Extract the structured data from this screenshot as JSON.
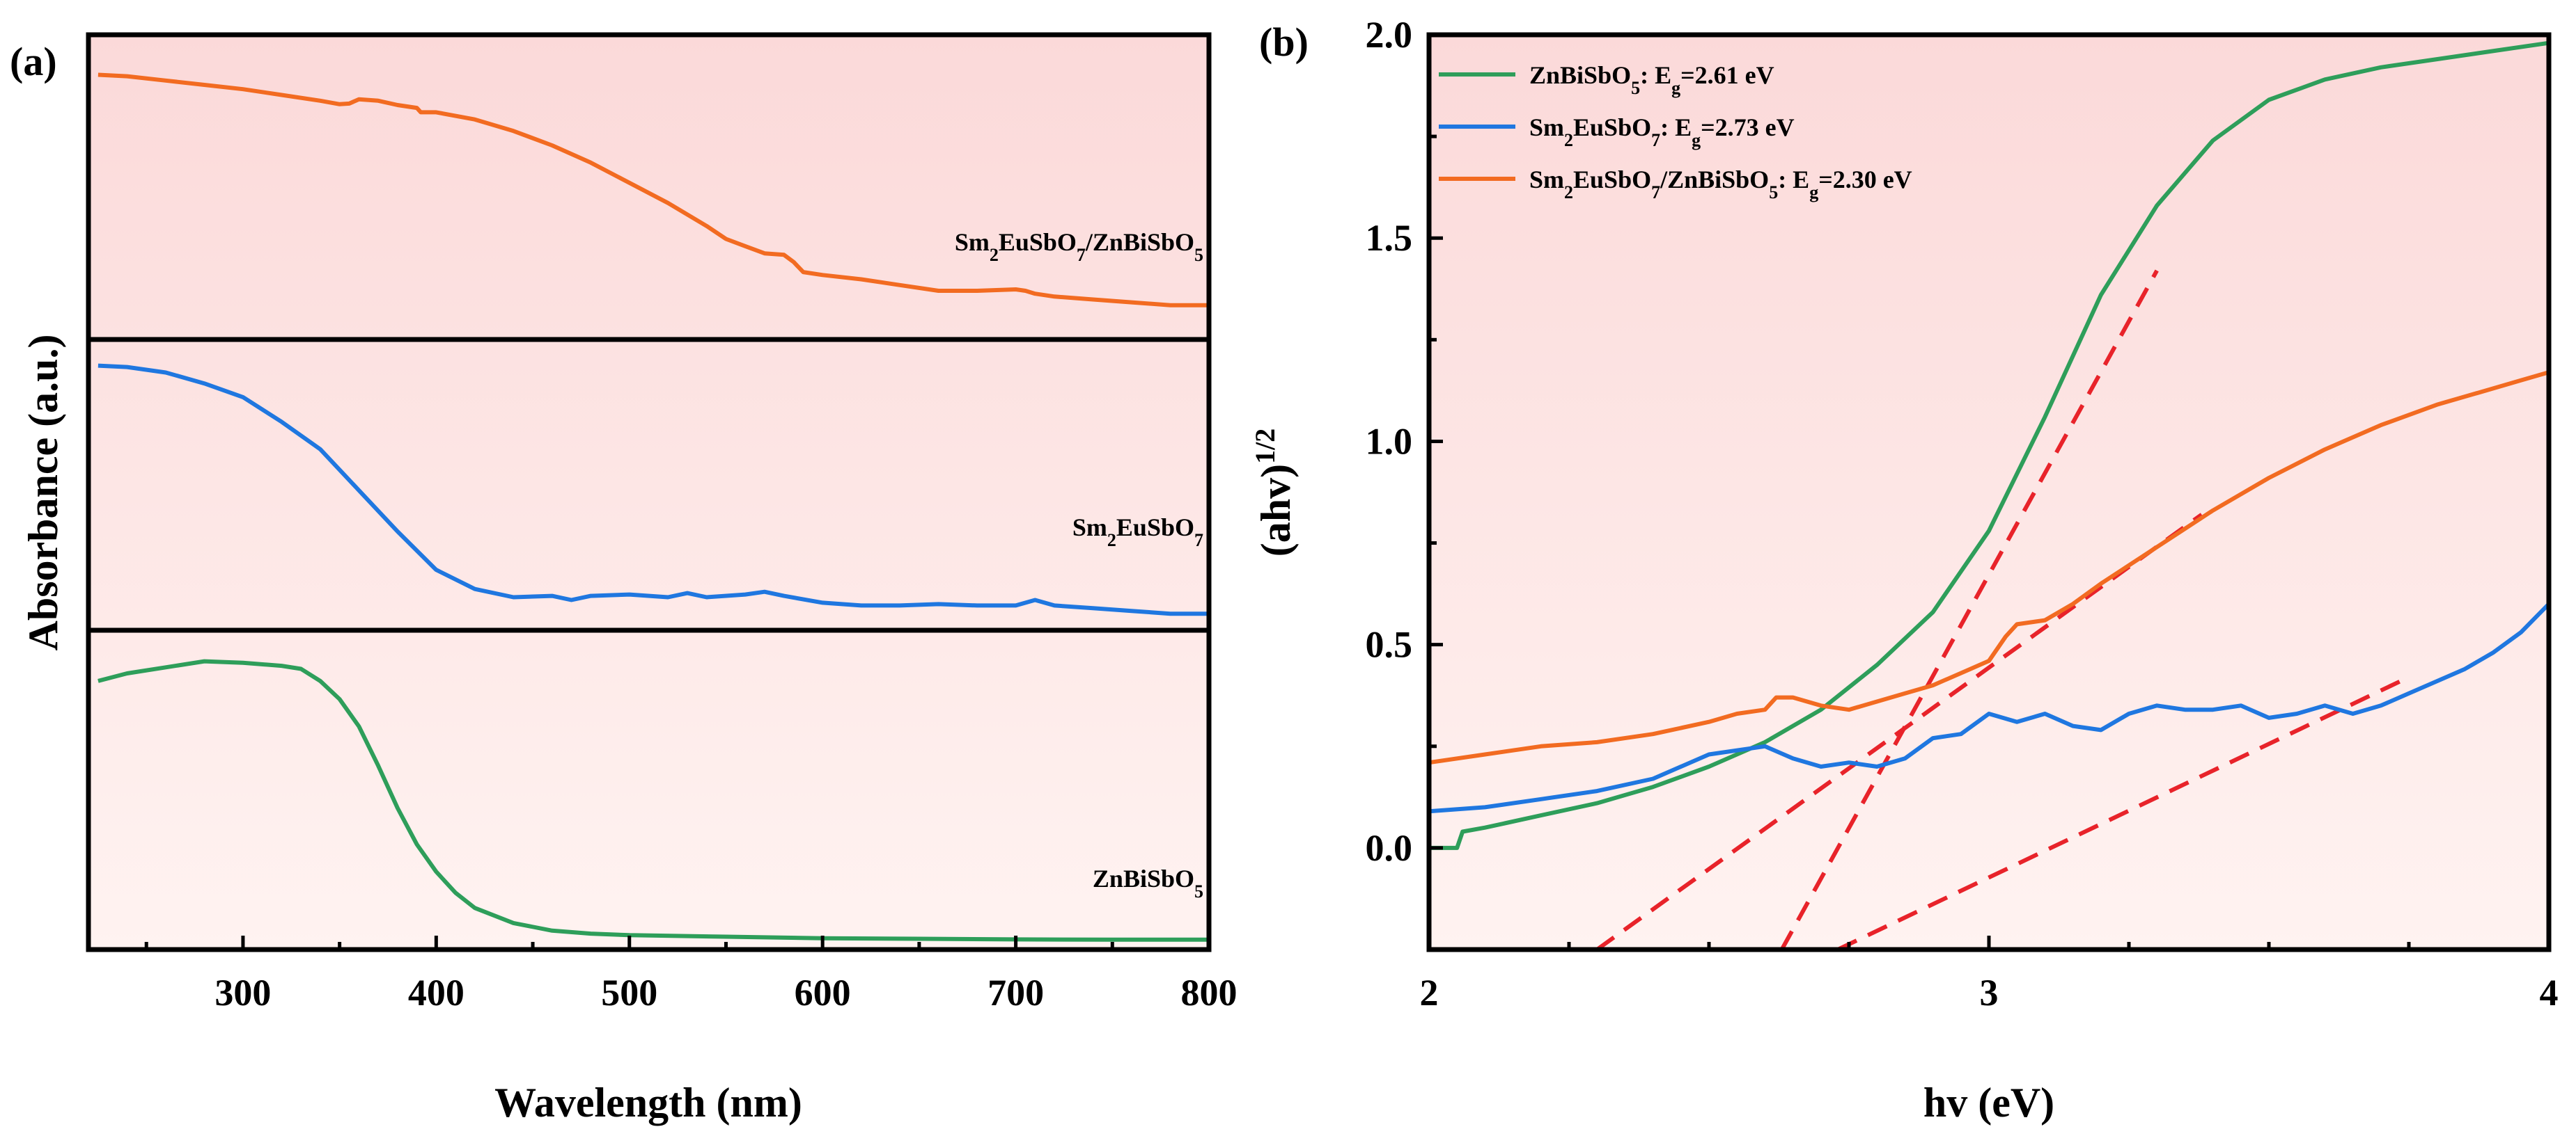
{
  "figure": {
    "panel_a_label": "(a)",
    "panel_b_label": "(b)"
  },
  "chart_data": [
    {
      "type": "line",
      "panel": "(a)",
      "title": "",
      "xlabel": "Wavelength (nm)",
      "ylabel": "Absorbance (a.u.)",
      "xlim": [
        220,
        800
      ],
      "xticks": [
        300,
        400,
        500,
        600,
        700,
        800
      ],
      "xtick_labels": [
        "300",
        "400",
        "500",
        "600",
        "700",
        "800"
      ],
      "yticks": [],
      "layout": "three vertically stacked sub-panels with pink gradient background",
      "series": [
        {
          "name": "Sm2EuSbO7/ZnBiSbO5",
          "label_parts": [
            [
              "Sm",
              ""
            ],
            [
              "2",
              "sub"
            ],
            [
              "EuSbO",
              ""
            ],
            [
              "7",
              "sub"
            ],
            [
              "/ZnBiSbO",
              ""
            ],
            [
              "5",
              "sub"
            ]
          ],
          "color": "#f26b21",
          "stack_index": 0,
          "x": [
            225,
            240,
            260,
            280,
            300,
            320,
            340,
            350,
            355,
            360,
            370,
            380,
            390,
            392,
            400,
            420,
            440,
            460,
            480,
            500,
            520,
            540,
            550,
            560,
            570,
            580,
            585,
            590,
            600,
            620,
            640,
            660,
            680,
            700,
            705,
            710,
            720,
            740,
            760,
            780,
            800
          ],
          "values": [
            0.89,
            0.885,
            0.87,
            0.855,
            0.84,
            0.82,
            0.8,
            0.788,
            0.79,
            0.805,
            0.8,
            0.785,
            0.775,
            0.76,
            0.76,
            0.735,
            0.695,
            0.645,
            0.585,
            0.515,
            0.445,
            0.365,
            0.32,
            0.295,
            0.27,
            0.265,
            0.24,
            0.205,
            0.195,
            0.18,
            0.16,
            0.14,
            0.14,
            0.145,
            0.14,
            0.13,
            0.12,
            0.11,
            0.1,
            0.09,
            0.09
          ]
        },
        {
          "name": "Sm2EuSbO7",
          "label_parts": [
            [
              "Sm",
              ""
            ],
            [
              "2",
              "sub"
            ],
            [
              "EuSbO",
              ""
            ],
            [
              "7",
              "sub"
            ]
          ],
          "color": "#1f77e0",
          "stack_index": 1,
          "x": [
            225,
            240,
            260,
            280,
            300,
            320,
            340,
            360,
            380,
            400,
            420,
            440,
            460,
            470,
            480,
            500,
            520,
            530,
            540,
            560,
            570,
            580,
            600,
            620,
            640,
            660,
            680,
            700,
            710,
            720,
            740,
            760,
            780,
            800
          ],
          "values": [
            0.935,
            0.93,
            0.91,
            0.87,
            0.82,
            0.73,
            0.63,
            0.48,
            0.33,
            0.19,
            0.12,
            0.09,
            0.095,
            0.08,
            0.095,
            0.1,
            0.09,
            0.105,
            0.09,
            0.1,
            0.11,
            0.095,
            0.07,
            0.06,
            0.06,
            0.065,
            0.06,
            0.06,
            0.08,
            0.06,
            0.05,
            0.04,
            0.03,
            0.03
          ]
        },
        {
          "name": "ZnBiSbO5",
          "label_parts": [
            [
              "ZnBiSbO",
              ""
            ],
            [
              "5",
              "sub"
            ]
          ],
          "color": "#2e9e5a",
          "stack_index": 2,
          "x": [
            225,
            240,
            260,
            280,
            300,
            320,
            330,
            340,
            350,
            360,
            370,
            380,
            390,
            400,
            410,
            420,
            440,
            460,
            480,
            500,
            550,
            600,
            650,
            700,
            750,
            800
          ],
          "values": [
            0.86,
            0.885,
            0.905,
            0.925,
            0.92,
            0.91,
            0.9,
            0.86,
            0.8,
            0.71,
            0.58,
            0.44,
            0.32,
            0.23,
            0.16,
            0.11,
            0.06,
            0.035,
            0.025,
            0.02,
            0.015,
            0.01,
            0.008,
            0.006,
            0.005,
            0.005
          ]
        }
      ]
    },
    {
      "type": "line",
      "panel": "(b)",
      "title": "",
      "xlabel": "hv (eV)",
      "ylabel_parts": [
        [
          "(ahv)",
          ""
        ],
        [
          "1/2",
          "sup"
        ]
      ],
      "xlim": [
        2,
        4
      ],
      "ylim": [
        -0.25,
        2.0
      ],
      "xticks": [
        2,
        3,
        4
      ],
      "xtick_labels": [
        "2",
        "3",
        "4"
      ],
      "yticks": [
        0.0,
        0.5,
        1.0,
        1.5,
        2.0
      ],
      "ytick_labels": [
        "0.0",
        "0.5",
        "1.0",
        "1.5",
        "2.0"
      ],
      "legend_position": "top-left",
      "series": [
        {
          "name": "ZnBiSbO5",
          "legend_parts": [
            [
              "ZnBiSbO",
              ""
            ],
            [
              "5",
              "sub"
            ],
            [
              ": E",
              ""
            ],
            [
              "g",
              "sub"
            ],
            [
              "=2.61 eV",
              ""
            ]
          ],
          "color": "#2e9e5a",
          "x": [
            2.0,
            2.05,
            2.06,
            2.1,
            2.2,
            2.3,
            2.4,
            2.5,
            2.6,
            2.7,
            2.8,
            2.9,
            3.0,
            3.1,
            3.2,
            3.3,
            3.4,
            3.5,
            3.6,
            3.7,
            3.8,
            3.9,
            4.0
          ],
          "values": [
            0.0,
            0.0,
            0.04,
            0.05,
            0.08,
            0.11,
            0.15,
            0.2,
            0.26,
            0.34,
            0.45,
            0.58,
            0.78,
            1.06,
            1.36,
            1.58,
            1.74,
            1.84,
            1.89,
            1.92,
            1.94,
            1.96,
            1.98
          ]
        },
        {
          "name": "Sm2EuSbO7",
          "legend_parts": [
            [
              "Sm",
              ""
            ],
            [
              "2",
              "sub"
            ],
            [
              "EuSbO",
              ""
            ],
            [
              "7",
              "sub"
            ],
            [
              ": E",
              ""
            ],
            [
              "g",
              "sub"
            ],
            [
              "=2.73 eV",
              ""
            ]
          ],
          "color": "#1f77e0",
          "x": [
            2.0,
            2.1,
            2.2,
            2.3,
            2.4,
            2.5,
            2.6,
            2.65,
            2.7,
            2.75,
            2.8,
            2.85,
            2.9,
            2.95,
            3.0,
            3.05,
            3.1,
            3.15,
            3.2,
            3.25,
            3.3,
            3.35,
            3.4,
            3.45,
            3.5,
            3.55,
            3.6,
            3.65,
            3.7,
            3.75,
            3.8,
            3.85,
            3.9,
            3.95,
            4.0
          ],
          "values": [
            0.09,
            0.1,
            0.12,
            0.14,
            0.17,
            0.23,
            0.25,
            0.22,
            0.2,
            0.21,
            0.2,
            0.22,
            0.27,
            0.28,
            0.33,
            0.31,
            0.33,
            0.3,
            0.29,
            0.33,
            0.35,
            0.34,
            0.34,
            0.35,
            0.32,
            0.33,
            0.35,
            0.33,
            0.35,
            0.38,
            0.41,
            0.44,
            0.48,
            0.53,
            0.6
          ]
        },
        {
          "name": "Sm2EuSbO7/ZnBiSbO5",
          "legend_parts": [
            [
              "Sm",
              ""
            ],
            [
              "2",
              "sub"
            ],
            [
              "EuSbO",
              ""
            ],
            [
              "7",
              "sub"
            ],
            [
              "/ZnBiSbO",
              ""
            ],
            [
              "5",
              "sub"
            ],
            [
              ": E",
              ""
            ],
            [
              "g",
              "sub"
            ],
            [
              "=2.30 eV",
              ""
            ]
          ],
          "color": "#f26b21",
          "x": [
            2.0,
            2.1,
            2.2,
            2.3,
            2.4,
            2.5,
            2.55,
            2.6,
            2.62,
            2.65,
            2.7,
            2.75,
            2.8,
            2.85,
            2.9,
            2.95,
            3.0,
            3.03,
            3.05,
            3.1,
            3.15,
            3.2,
            3.3,
            3.4,
            3.5,
            3.6,
            3.7,
            3.8,
            3.9,
            3.95,
            4.0
          ],
          "values": [
            0.21,
            0.23,
            0.25,
            0.26,
            0.28,
            0.31,
            0.33,
            0.34,
            0.37,
            0.37,
            0.35,
            0.34,
            0.36,
            0.38,
            0.4,
            0.43,
            0.46,
            0.52,
            0.55,
            0.56,
            0.6,
            0.65,
            0.74,
            0.83,
            0.91,
            0.98,
            1.04,
            1.09,
            1.13,
            1.15,
            1.17
          ]
        }
      ],
      "fit_lines": [
        {
          "name": "ZnBiSbO5 tangent",
          "color": "#e8232a",
          "x": [
            2.63,
            3.3
          ],
          "values": [
            -0.25,
            1.42
          ]
        },
        {
          "name": "Sm2EuSbO7 tangent",
          "color": "#e8232a",
          "x": [
            2.73,
            3.75
          ],
          "values": [
            -0.25,
            0.42
          ]
        },
        {
          "name": "Sm2EuSbO7/ZnBiSbO5 tangent",
          "color": "#e8232a",
          "x": [
            2.3,
            3.38
          ],
          "values": [
            -0.25,
            0.82
          ]
        }
      ]
    }
  ]
}
